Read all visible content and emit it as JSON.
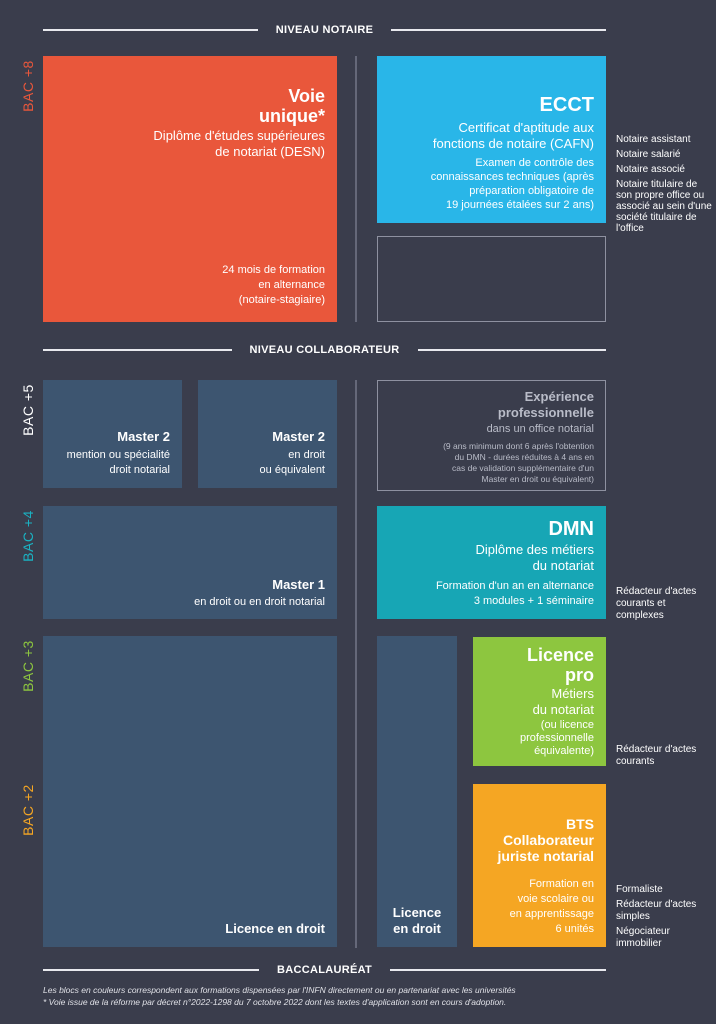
{
  "headers": {
    "notaire": "NIVEAU NOTAIRE",
    "collaborateur": "NIVEAU COLLABORATEUR",
    "bac": "BACCALAURÉAT"
  },
  "bac_levels": [
    {
      "label": "BAC +8",
      "color": "#e9573b"
    },
    {
      "label": "BAC +5",
      "color": "#ffffff"
    },
    {
      "label": "BAC +4",
      "color": "#1ab3c3"
    },
    {
      "label": "BAC +3",
      "color": "#8dc63f"
    },
    {
      "label": "BAC +2",
      "color": "#f5a623"
    }
  ],
  "colors": {
    "red": "#e9573b",
    "blue": "#29b6e8",
    "teal": "#17a6b5",
    "green": "#8dc63f",
    "orange": "#f5a623",
    "navy": "#3d5570",
    "background": "#3a3d4c"
  },
  "voie": {
    "title1": "Voie",
    "title2": "unique*",
    "subtitle1": "Diplôme d'études supérieures",
    "subtitle2": "de notariat (DESN)",
    "note1": "24 mois de formation",
    "note2": "en alternance",
    "note3": "(notaire-stagiaire)"
  },
  "ecct": {
    "title": "ECCT",
    "subtitle1": "Certificat d'aptitude aux",
    "subtitle2": "fonctions de notaire (CAFN)",
    "note1": "Examen de contrôle des",
    "note2": "connaissances techniques (après",
    "note3": "préparation obligatoire de",
    "note4": "19 journées étalées sur 2 ans)"
  },
  "notaire_roles": [
    "Notaire assistant",
    "Notaire salarié",
    "Notaire associé",
    "Notaire titulaire de son propre office ou associé au sein d'une société titulaire de l'office"
  ],
  "master2a": {
    "title": "Master 2",
    "line1": "mention ou spécialité",
    "line2": "droit notarial"
  },
  "master2b": {
    "title": "Master 2",
    "line1": "en droit",
    "line2": "ou équivalent"
  },
  "experience": {
    "title1": "Expérience",
    "title2": "professionnelle",
    "subtitle": "dans un office notarial",
    "note1": "(9 ans minimum dont 6 après l'obtention",
    "note2": "du DMN - durées réduites à 4 ans en",
    "note3": "cas de validation supplémentaire d'un",
    "note4": "Master en droit ou équivalent)"
  },
  "master1": {
    "title": "Master 1",
    "line1": "en droit ou en droit notarial"
  },
  "dmn": {
    "title": "DMN",
    "subtitle1": "Diplôme des métiers",
    "subtitle2": "du notariat",
    "note1": "Formation d'un an en alternance",
    "note2": "3 modules + 1 séminaire"
  },
  "dmn_roles": [
    "Rédacteur d'actes courants et complexes"
  ],
  "licence_droit": {
    "label": "Licence en droit"
  },
  "licence_droit2": {
    "line1": "Licence",
    "line2": "en droit"
  },
  "licence_pro": {
    "title1": "Licence",
    "title2": "pro",
    "subtitle1": "Métiers",
    "subtitle2": "du notariat",
    "note1": "(ou licence",
    "note2": "professionnelle",
    "note3": "équivalente)"
  },
  "licence_roles": [
    "Rédacteur d'actes courants"
  ],
  "bts": {
    "title1": "BTS",
    "title2": "Collaborateur",
    "title3": "juriste notarial",
    "note1": "Formation en",
    "note2": "voie scolaire ou",
    "note3": "en apprentissage",
    "note4": "6 unités"
  },
  "bts_roles": [
    "Formaliste",
    "Rédacteur d'actes simples",
    "Négociateur immobilier"
  ],
  "footnotes": {
    "line1": "Les blocs en couleurs correspondent aux formations dispensées par l'INFN directement ou en partenariat avec les universités",
    "line2": "* Voie issue de la réforme par décret n°2022-1298 du 7 octobre 2022 dont les textes d'application sont en cours d'adoption."
  }
}
